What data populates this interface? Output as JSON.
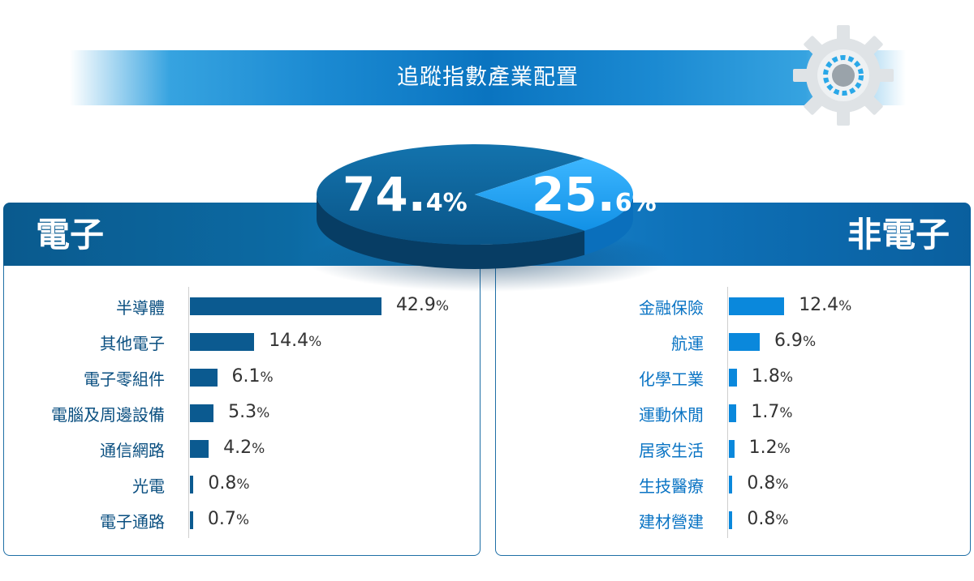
{
  "title": "追蹤指數產業配置",
  "pie": {
    "electronic_big": "74.",
    "electronic_small": "4%",
    "non_electronic_big": "25.",
    "non_electronic_small": "6%"
  },
  "colors": {
    "electronic": "#0b5a90",
    "non_electronic": "#0a88dc",
    "electronic_label": "#0a4f80",
    "non_electronic_label": "#0a74c4"
  },
  "chart_data": [
    {
      "type": "pie",
      "categories": [
        "電子",
        "非電子"
      ],
      "values": [
        74.4,
        25.6
      ]
    },
    {
      "type": "bar",
      "title": "電子",
      "categories": [
        "半導體",
        "其他電子",
        "電子零組件",
        "電腦及周邊設備",
        "通信網路",
        "光電",
        "電子通路"
      ],
      "values": [
        42.9,
        14.4,
        6.1,
        5.3,
        4.2,
        0.8,
        0.7
      ],
      "value_labels": [
        {
          "num": "42.9",
          "pct": "%"
        },
        {
          "num": "14.4",
          "pct": "%"
        },
        {
          "num": "6.1",
          "pct": "%"
        },
        {
          "num": "5.3",
          "pct": "%"
        },
        {
          "num": "4.2",
          "pct": "%"
        },
        {
          "num": "0.8",
          "pct": "%"
        },
        {
          "num": "0.7",
          "pct": "%"
        }
      ]
    },
    {
      "type": "bar",
      "title": "非電子",
      "categories": [
        "金融保險",
        "航運",
        "化學工業",
        "運動休閒",
        "居家生活",
        "生技醫療",
        "建材營建"
      ],
      "values": [
        12.4,
        6.9,
        1.8,
        1.7,
        1.2,
        0.8,
        0.8
      ],
      "value_labels": [
        {
          "num": "12.4",
          "pct": "%"
        },
        {
          "num": "6.9",
          "pct": "%"
        },
        {
          "num": "1.8",
          "pct": "%"
        },
        {
          "num": "1.7",
          "pct": "%"
        },
        {
          "num": "1.2",
          "pct": "%"
        },
        {
          "num": "0.8",
          "pct": "%"
        },
        {
          "num": "0.8",
          "pct": "%"
        }
      ]
    }
  ]
}
